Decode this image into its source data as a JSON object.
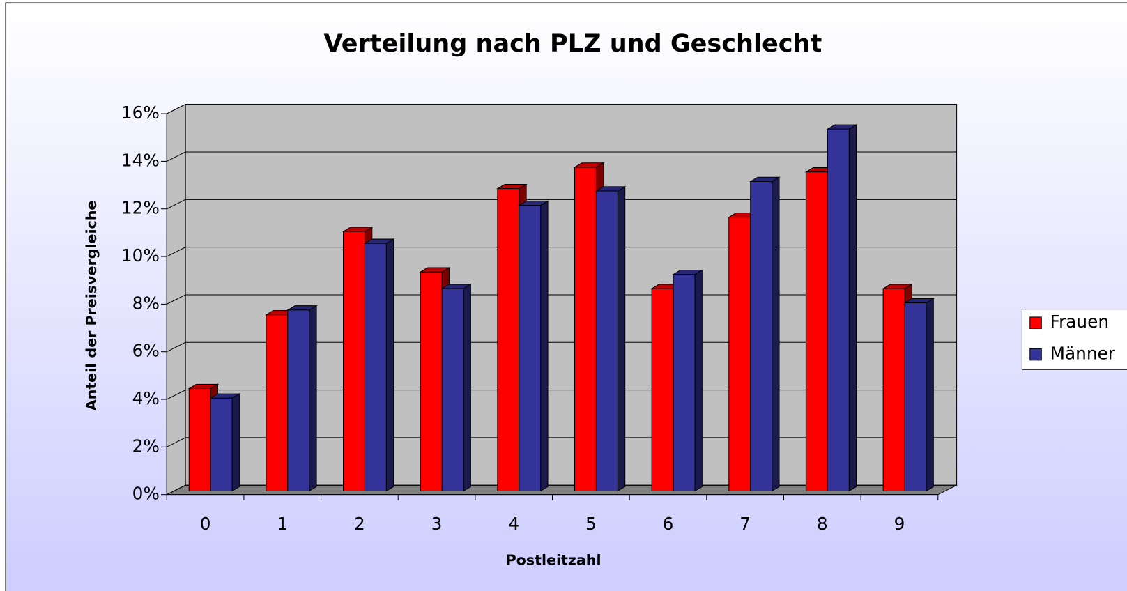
{
  "chart_data": {
    "type": "bar3d",
    "title": "Verteilung nach PLZ und Geschlecht",
    "x_label": "Postleitzahl",
    "y_label": "Anteil der Preisvergleiche",
    "categories": [
      "0",
      "1",
      "2",
      "3",
      "4",
      "5",
      "6",
      "7",
      "8",
      "9"
    ],
    "series": [
      {
        "name": "Frauen",
        "color": "#ff0000",
        "values": [
          4.3,
          7.4,
          10.9,
          9.2,
          12.7,
          13.6,
          8.5,
          11.5,
          13.4,
          8.5
        ]
      },
      {
        "name": "Männer",
        "color": "#333399",
        "values": [
          3.9,
          7.6,
          10.4,
          8.5,
          12.0,
          12.6,
          9.1,
          13.0,
          15.2,
          7.9
        ]
      }
    ],
    "ylim": [
      0,
      16
    ],
    "yticks": [
      {
        "value": 0,
        "label": "0%"
      },
      {
        "value": 2,
        "label": "2%"
      },
      {
        "value": 4,
        "label": "4%"
      },
      {
        "value": 6,
        "label": "6%"
      },
      {
        "value": 8,
        "label": "8%"
      },
      {
        "value": 10,
        "label": "10%"
      },
      {
        "value": 12,
        "label": "12%"
      },
      {
        "value": 14,
        "label": "14%"
      },
      {
        "value": 16,
        "label": "16%"
      }
    ],
    "grid": true,
    "legend": "right"
  }
}
